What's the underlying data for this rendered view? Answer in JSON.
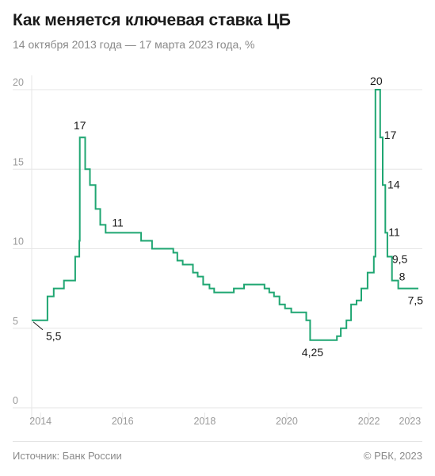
{
  "title": "Как меняется ключевая ставка ЦБ",
  "subtitle": "14 октября 2013 года — 17 марта 2023 года, %",
  "source": "Источник: Банк России",
  "copyright": "© РБК, 2023",
  "colors": {
    "line": "#1fa672",
    "grid": "#e6e6e6",
    "axis_text": "#9a9a9a"
  },
  "chart_data": {
    "type": "line",
    "step": "after",
    "x_range": [
      "2013-10-14",
      "2023-03-17"
    ],
    "y_range": [
      0,
      20
    ],
    "y_ticks": [
      0,
      5,
      10,
      15,
      20
    ],
    "x_ticks": [
      {
        "date": "2014-01-01",
        "label": "2014"
      },
      {
        "date": "2016-01-01",
        "label": "2016"
      },
      {
        "date": "2018-01-01",
        "label": "2018"
      },
      {
        "date": "2020-01-01",
        "label": "2020"
      },
      {
        "date": "2022-01-01",
        "label": "2022"
      },
      {
        "date": "2023-01-01",
        "label": "2023"
      }
    ],
    "series": [
      {
        "points": [
          [
            "2013-10-14",
            5.5
          ],
          [
            "2014-03-03",
            7
          ],
          [
            "2014-04-28",
            7.5
          ],
          [
            "2014-07-28",
            8
          ],
          [
            "2014-11-05",
            9.5
          ],
          [
            "2014-12-12",
            10.5
          ],
          [
            "2014-12-16",
            17
          ],
          [
            "2015-02-02",
            15
          ],
          [
            "2015-03-16",
            14
          ],
          [
            "2015-05-05",
            12.5
          ],
          [
            "2015-06-16",
            11.5
          ],
          [
            "2015-08-03",
            11
          ],
          [
            "2016-06-14",
            10.5
          ],
          [
            "2016-09-19",
            10
          ],
          [
            "2017-03-27",
            9.75
          ],
          [
            "2017-05-02",
            9.25
          ],
          [
            "2017-06-19",
            9
          ],
          [
            "2017-09-18",
            8.5
          ],
          [
            "2017-10-30",
            8.25
          ],
          [
            "2017-12-18",
            7.75
          ],
          [
            "2018-02-12",
            7.5
          ],
          [
            "2018-03-26",
            7.25
          ],
          [
            "2018-09-17",
            7.5
          ],
          [
            "2018-12-17",
            7.75
          ],
          [
            "2019-06-17",
            7.5
          ],
          [
            "2019-07-29",
            7.25
          ],
          [
            "2019-09-09",
            7
          ],
          [
            "2019-10-28",
            6.5
          ],
          [
            "2019-12-16",
            6.25
          ],
          [
            "2020-02-10",
            6
          ],
          [
            "2020-06-22",
            5.5
          ],
          [
            "2020-07-27",
            4.25
          ],
          [
            "2021-03-22",
            4.5
          ],
          [
            "2021-04-26",
            5
          ],
          [
            "2021-06-15",
            5.5
          ],
          [
            "2021-07-26",
            6.5
          ],
          [
            "2021-09-13",
            6.75
          ],
          [
            "2021-10-25",
            7.5
          ],
          [
            "2021-12-20",
            8.5
          ],
          [
            "2022-02-14",
            9.5
          ],
          [
            "2022-02-28",
            20
          ],
          [
            "2022-04-11",
            17
          ],
          [
            "2022-05-04",
            14
          ],
          [
            "2022-05-27",
            11
          ],
          [
            "2022-06-14",
            9.5
          ],
          [
            "2022-07-25",
            8
          ],
          [
            "2022-09-19",
            7.5
          ],
          [
            "2023-03-17",
            7.5
          ]
        ]
      }
    ],
    "annotations": [
      {
        "date": "2014-12-16",
        "value": 17,
        "text": "17"
      },
      {
        "date": "2015-08-03",
        "value": 11,
        "text": "11"
      },
      {
        "date": "2022-02-28",
        "value": 20,
        "text": "20"
      },
      {
        "date": "2022-04-11",
        "value": 17,
        "text": "17"
      },
      {
        "date": "2022-05-04",
        "value": 14,
        "text": "14"
      },
      {
        "date": "2022-05-27",
        "value": 11,
        "text": "11"
      },
      {
        "date": "2022-06-14",
        "value": 9.5,
        "text": "9,5"
      },
      {
        "date": "2022-07-25",
        "value": 8,
        "text": "8"
      },
      {
        "date": "2022-09-19",
        "value": 7.5,
        "text": "7,5"
      },
      {
        "date": "2013-10-14",
        "value": 5.5,
        "text": "5,5"
      },
      {
        "date": "2020-07-27",
        "value": 4.25,
        "text": "4,25"
      }
    ]
  }
}
